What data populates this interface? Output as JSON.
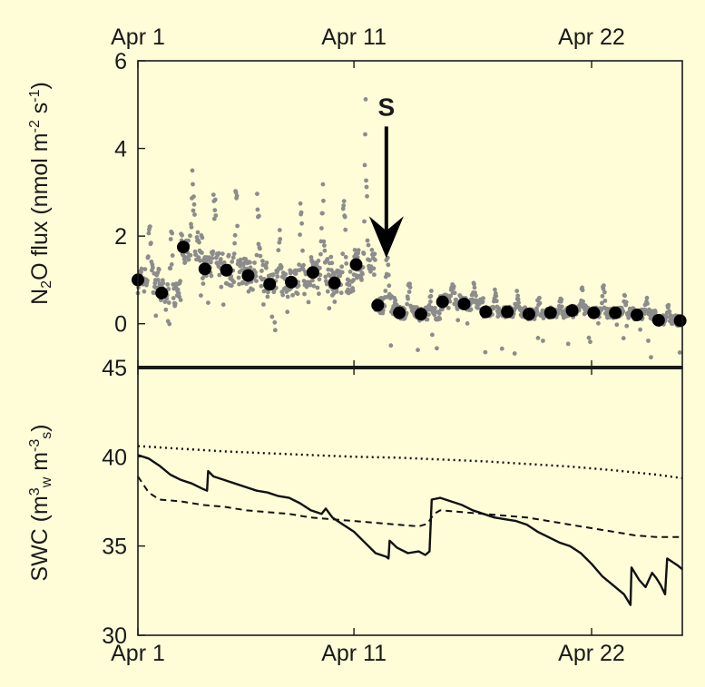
{
  "colors": {
    "background": "#fffdd8",
    "axis": "#1a1a1a",
    "raw_points": "#8c8c8c",
    "daily_means": "#000000"
  },
  "chart_data": [
    {
      "type": "scatter",
      "panel": "top",
      "title": "",
      "xlabel": "",
      "ylabel": {
        "parts": [
          {
            "t": "N",
            "s": "normal"
          },
          {
            "t": "2",
            "s": "sub"
          },
          {
            "t": "O flux (nmol m",
            "s": "normal"
          },
          {
            "t": "-2",
            "s": "sup"
          },
          {
            "t": " s",
            "s": "normal"
          },
          {
            "t": "-1",
            "s": "sup"
          },
          {
            "t": ")",
            "s": "normal"
          }
        ]
      },
      "xlim": [
        1,
        26.2
      ],
      "ylim": [
        -1,
        6
      ],
      "xticks": [
        {
          "value": 1,
          "label": "Apr 1"
        },
        {
          "value": 11,
          "label": "Apr 11"
        },
        {
          "value": 22,
          "label": "Apr 22"
        }
      ],
      "yticks": [
        {
          "value": 0,
          "label": "0"
        },
        {
          "value": 2,
          "label": "2"
        },
        {
          "value": 4,
          "label": "4"
        },
        {
          "value": 6,
          "label": "6"
        }
      ],
      "xtick_labels_position": "top",
      "grid": false,
      "annotation": {
        "label": "S",
        "x": 12.5,
        "y_from": 4.5,
        "y_to": 1.5
      },
      "series": [
        {
          "role": "daily_mean",
          "marker": "filled-circle",
          "x": [
            1.0,
            2.1,
            3.1,
            4.1,
            5.1,
            6.1,
            7.1,
            8.1,
            9.1,
            10.1,
            11.1,
            12.1,
            13.1,
            14.1,
            15.1,
            16.1,
            17.1,
            18.1,
            19.1,
            20.1,
            21.1,
            22.1,
            23.1,
            24.1,
            25.1,
            26.1
          ],
          "y": [
            1.0,
            0.7,
            1.75,
            1.25,
            1.22,
            1.1,
            0.9,
            0.95,
            1.17,
            0.93,
            1.35,
            0.42,
            0.25,
            0.22,
            0.5,
            0.45,
            0.27,
            0.27,
            0.22,
            0.25,
            0.3,
            0.25,
            0.25,
            0.2,
            0.08,
            0.07
          ]
        },
        {
          "role": "raw_half_hourly",
          "marker": "small-dot",
          "daily_means": [
            1.0,
            0.7,
            1.75,
            1.25,
            1.22,
            1.1,
            0.9,
            0.95,
            1.17,
            0.93,
            1.35,
            0.42,
            0.25,
            0.22,
            0.5,
            0.45,
            0.27,
            0.27,
            0.22,
            0.25,
            0.3,
            0.25,
            0.25,
            0.2,
            0.08,
            0.07
          ],
          "daily_peaks": [
            3.0,
            2.2,
            3.9,
            4.2,
            3.4,
            3.6,
            2.2,
            2.9,
            3.6,
            3.3,
            5.1,
            2.2,
            1.1,
            0.9,
            1.3,
            1.0,
            0.8,
            0.8,
            0.7,
            0.6,
            0.9,
            1.2,
            0.7,
            0.6,
            0.5,
            0.4
          ],
          "spread": [
            0.5,
            0.5,
            0.6,
            0.6,
            0.6,
            0.6,
            0.5,
            0.5,
            0.6,
            0.5,
            0.6,
            0.35,
            0.25,
            0.25,
            0.3,
            0.25,
            0.2,
            0.2,
            0.2,
            0.2,
            0.2,
            0.2,
            0.2,
            0.2,
            0.2,
            0.2
          ],
          "min_value": -0.95
        }
      ]
    },
    {
      "type": "line",
      "panel": "bottom",
      "title": "",
      "ylabel": {
        "parts": [
          {
            "t": "SWC (m",
            "s": "normal"
          },
          {
            "t": "3",
            "s": "sup"
          },
          {
            "t": "w",
            "s": "sub"
          },
          {
            "t": " m",
            "s": "normal"
          },
          {
            "t": "-3",
            "s": "sup"
          },
          {
            "t": "s",
            "s": "sub"
          },
          {
            "t": ")",
            "s": "normal"
          }
        ]
      },
      "xlim": [
        1,
        26.2
      ],
      "ylim": [
        30,
        45
      ],
      "xticks": [
        {
          "value": 1,
          "label": "Apr 1"
        },
        {
          "value": 11,
          "label": "Apr 11"
        },
        {
          "value": 22,
          "label": "Apr 22"
        }
      ],
      "yticks": [
        {
          "value": 30,
          "label": "30"
        },
        {
          "value": 35,
          "label": "35"
        },
        {
          "value": 40,
          "label": "40"
        },
        {
          "value": 45,
          "label": "45"
        }
      ],
      "grid": false,
      "series": [
        {
          "style": "dotted",
          "x": [
            1,
            3,
            5,
            7,
            9,
            11,
            13,
            15,
            17,
            19,
            21,
            23,
            25,
            26.2
          ],
          "y": [
            40.6,
            40.45,
            40.3,
            40.2,
            40.1,
            40.0,
            39.95,
            39.85,
            39.75,
            39.6,
            39.45,
            39.25,
            39.0,
            38.8
          ]
        },
        {
          "style": "dashed",
          "x": [
            1,
            1.5,
            2,
            3,
            4,
            5,
            6,
            7,
            8,
            9,
            10,
            11,
            12,
            13,
            14,
            14.4,
            14.7,
            15,
            16,
            17,
            18,
            19,
            20,
            21,
            22,
            23,
            24,
            25,
            26.2
          ],
          "y": [
            38.9,
            38.0,
            37.6,
            37.5,
            37.3,
            37.2,
            37.0,
            36.9,
            36.8,
            36.6,
            36.5,
            36.4,
            36.3,
            36.2,
            36.1,
            36.25,
            36.8,
            37.0,
            36.9,
            36.8,
            36.7,
            36.6,
            36.4,
            36.2,
            36.0,
            35.8,
            35.6,
            35.5,
            35.5
          ],
          "_": "dashed"
        },
        {
          "style": "solid",
          "x": [
            1,
            1.5,
            2,
            2.5,
            3,
            3.5,
            4,
            4.2,
            4.25,
            4.5,
            5,
            5.5,
            6,
            6.5,
            7,
            7.5,
            8,
            8.5,
            9,
            9.5,
            9.7,
            10,
            10.5,
            11,
            11.5,
            12,
            12.5,
            12.6,
            12.65,
            13,
            13.5,
            14,
            14.3,
            14.5,
            14.6,
            15,
            15.5,
            16,
            16.5,
            17,
            17.5,
            18,
            18.5,
            19,
            19.5,
            20,
            20.5,
            21,
            21.5,
            22,
            22.5,
            23,
            23.5,
            23.8,
            23.85,
            24.2,
            24.5,
            24.8,
            25,
            25.2,
            25.4,
            25.5,
            26,
            26.2
          ],
          "y": [
            40.1,
            39.9,
            39.5,
            39.0,
            38.7,
            38.5,
            38.2,
            38.1,
            39.2,
            38.9,
            38.7,
            38.5,
            38.3,
            38.1,
            38.0,
            37.8,
            37.7,
            37.4,
            37.0,
            36.8,
            37.1,
            36.6,
            36.2,
            35.8,
            35.2,
            34.6,
            34.4,
            34.3,
            35.3,
            34.9,
            34.6,
            34.7,
            34.5,
            34.7,
            37.6,
            37.7,
            37.5,
            37.3,
            37.0,
            36.8,
            36.6,
            36.5,
            36.4,
            36.2,
            35.8,
            35.5,
            35.2,
            35.0,
            34.6,
            34.0,
            33.3,
            32.8,
            32.3,
            31.7,
            33.8,
            33.1,
            32.7,
            33.5,
            33.2,
            32.8,
            32.3,
            34.3,
            33.9,
            33.7
          ]
        }
      ]
    }
  ]
}
